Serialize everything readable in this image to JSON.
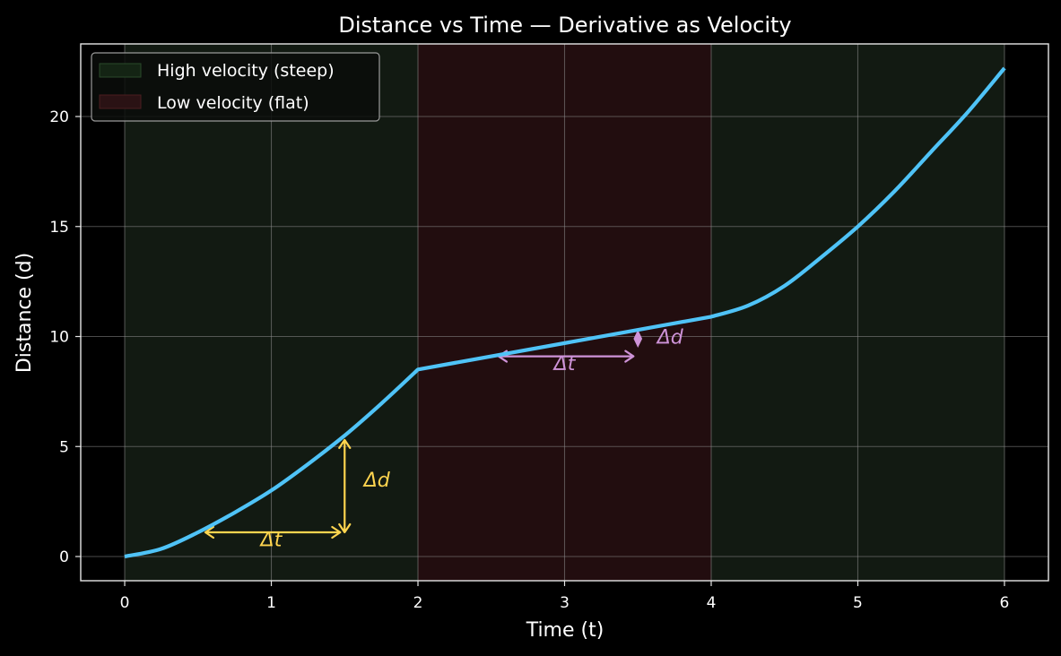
{
  "chart_data": {
    "type": "line",
    "title": "Distance vs Time — Derivative as Velocity",
    "xlabel": "Time (t)",
    "ylabel": "Distance (d)",
    "xlim": [
      -0.3,
      6.3
    ],
    "ylim": [
      -1.1,
      23.3
    ],
    "xticks": [
      0,
      1,
      2,
      3,
      4,
      5,
      6
    ],
    "yticks": [
      0,
      5,
      10,
      15,
      20
    ],
    "grid": true,
    "legend_position": "upper left",
    "series": [
      {
        "name": "distance",
        "color": "#4fc3f7",
        "x": [
          0,
          0.25,
          0.5,
          0.75,
          1.0,
          1.25,
          1.5,
          1.75,
          2.0,
          2.5,
          3.0,
          3.5,
          4.0,
          4.25,
          4.5,
          4.75,
          5.0,
          5.25,
          5.5,
          5.75,
          6.0
        ],
        "y": [
          0,
          0.35,
          1.1,
          2.0,
          3.0,
          4.2,
          5.5,
          6.95,
          8.5,
          9.1,
          9.7,
          10.3,
          10.9,
          11.4,
          12.3,
          13.6,
          15.0,
          16.6,
          18.4,
          20.2,
          22.2
        ]
      }
    ],
    "regions": [
      {
        "label": "High velocity (steep)",
        "x_start": 0,
        "x_end": 2,
        "color": "#121a12"
      },
      {
        "label": "Low velocity (flat)",
        "x_start": 2,
        "x_end": 4,
        "color": "#220d0f"
      },
      {
        "label": "High velocity (steep)",
        "x_start": 4,
        "x_end": 6,
        "color": "#121a12"
      }
    ],
    "legend": [
      {
        "label": "High velocity (steep)",
        "swatch": "#142414",
        "edge": "#2a4a2a"
      },
      {
        "label": "Low velocity (flat)",
        "swatch": "#2a1214",
        "edge": "#4a1e20"
      }
    ],
    "annotations": [
      {
        "text": "Δt",
        "color": "#ffd54f",
        "type": "double-arrow-horizontal",
        "x_start": 0.55,
        "x_end": 1.47,
        "y": 1.1,
        "label_x": 1.0,
        "label_y": 0.8
      },
      {
        "text": "Δd",
        "color": "#ffd54f",
        "type": "double-arrow-vertical",
        "x": 1.5,
        "y_start": 1.1,
        "y_end": 5.3,
        "label_x": 1.72,
        "label_y": 3.5
      },
      {
        "text": "Δt",
        "color": "#ce93d8",
        "type": "double-arrow-horizontal",
        "x_start": 2.55,
        "x_end": 3.47,
        "y": 9.1,
        "label_x": 3.0,
        "label_y": 8.8
      },
      {
        "text": "Δd",
        "color": "#ce93d8",
        "type": "double-arrow-vertical",
        "x": 3.5,
        "y_start": 9.6,
        "y_end": 10.2,
        "label_x": 3.72,
        "label_y": 10.0
      }
    ]
  },
  "labels": {
    "title": "Distance vs Time — Derivative as Velocity",
    "xlabel": "Time (t)",
    "ylabel": "Distance (d)",
    "legend_high": "High velocity (steep)",
    "legend_low": "Low velocity (flat)",
    "anno_dt": "Δt",
    "anno_dd": "Δd"
  }
}
